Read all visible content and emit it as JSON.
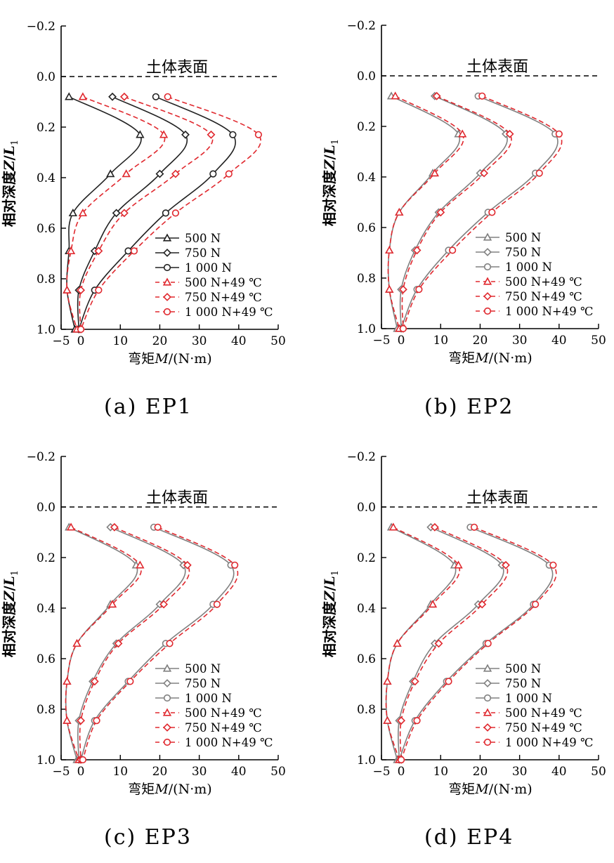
{
  "figure": {
    "xlabel_prefix": "弯矩",
    "xlabel_var": "M",
    "xlabel_unit": "/(N·m)",
    "ylabel_prefix": "相对深度",
    "ylabel_var_z": "Z",
    "ylabel_slash": "/",
    "ylabel_var_l": "L",
    "ylabel_sub": "1",
    "surface_label": "土体表面",
    "legend": [
      {
        "label": "500 N",
        "marker": "triangle",
        "style": "solid"
      },
      {
        "label": "750 N",
        "marker": "diamond",
        "style": "solid"
      },
      {
        "label": "1 000 N",
        "marker": "circle",
        "style": "solid"
      },
      {
        "label": "500 N+49 ℃",
        "marker": "triangle",
        "style": "dashed"
      },
      {
        "label": "750 N+49 ℃",
        "marker": "diamond",
        "style": "dashed"
      },
      {
        "label": "1 000 N+49 ℃",
        "marker": "circle",
        "style": "dashed"
      }
    ],
    "colors": {
      "solid_ep1": "#222222",
      "solid_other": "#808080",
      "dashed": "#e0282e",
      "axis": "#000000"
    }
  },
  "captions": [
    "(a) EP1",
    "(b) EP2",
    "(c) EP3",
    "(d) EP4"
  ],
  "chart_data": [
    {
      "type": "line",
      "title": "(a) EP1",
      "xlabel": "弯矩M/(N·m)",
      "ylabel": "相对深度Z/L1",
      "xlim": [
        -5,
        50
      ],
      "ylim": [
        -0.2,
        1.0
      ],
      "y_inverted": true,
      "xticks": [
        -5,
        0,
        10,
        20,
        30,
        40,
        50
      ],
      "yticks": [
        "-0.2",
        "0.0",
        "0.2",
        "0.4",
        "0.6",
        "0.8",
        "1.0"
      ],
      "annotation": "土体表面",
      "series": [
        {
          "name": "500 N",
          "x": [
            -3,
            15,
            7.5,
            -2,
            -3,
            -3.5,
            -1.5
          ],
          "y": [
            0.08,
            0.23,
            0.385,
            0.54,
            0.69,
            0.845,
            1.0
          ]
        },
        {
          "name": "750 N",
          "x": [
            8,
            26.5,
            20,
            9,
            3.5,
            -0.5,
            -0.5
          ],
          "y": [
            0.08,
            0.23,
            0.385,
            0.54,
            0.69,
            0.845,
            1.0
          ]
        },
        {
          "name": "1 000 N",
          "x": [
            19,
            38.5,
            33.5,
            21.5,
            12,
            3.5,
            -0.5
          ],
          "y": [
            0.08,
            0.23,
            0.385,
            0.54,
            0.69,
            0.845,
            1.0
          ]
        },
        {
          "name": "500 N+49 ℃",
          "x": [
            0.5,
            21,
            11.5,
            0.5,
            -2.5,
            -3.5,
            -1
          ],
          "y": [
            0.08,
            0.23,
            0.385,
            0.54,
            0.69,
            0.845,
            1.0
          ]
        },
        {
          "name": "750 N+49 ℃",
          "x": [
            11,
            33,
            24,
            11,
            4.5,
            0,
            0
          ],
          "y": [
            0.08,
            0.23,
            0.385,
            0.54,
            0.69,
            0.845,
            1.0
          ]
        },
        {
          "name": "1 000 N+49 ℃",
          "x": [
            22,
            45,
            37.5,
            24,
            13.5,
            4.5,
            0
          ],
          "y": [
            0.08,
            0.23,
            0.385,
            0.54,
            0.69,
            0.845,
            1.0
          ]
        }
      ]
    },
    {
      "type": "line",
      "title": "(b) EP2",
      "xlabel": "弯矩M/(N·m)",
      "ylabel": "相对深度Z/L1",
      "xlim": [
        -5,
        50
      ],
      "ylim": [
        -0.2,
        1.0
      ],
      "y_inverted": true,
      "xticks": [
        -5,
        0,
        10,
        20,
        30,
        40,
        50
      ],
      "yticks": [
        "-0.2",
        "0.0",
        "0.2",
        "0.4",
        "0.6",
        "0.8",
        "1.0"
      ],
      "annotation": "土体表面",
      "series": [
        {
          "name": "500 N",
          "x": [
            -2.5,
            14.5,
            8,
            -0.5,
            -3,
            -3,
            -1
          ],
          "y": [
            0.08,
            0.23,
            0.385,
            0.54,
            0.69,
            0.845,
            1.0
          ]
        },
        {
          "name": "750 N",
          "x": [
            8.5,
            26.5,
            20,
            9.5,
            3.5,
            0,
            0
          ],
          "y": [
            0.08,
            0.23,
            0.385,
            0.54,
            0.69,
            0.845,
            1.0
          ]
        },
        {
          "name": "1 000 N",
          "x": [
            19.5,
            39,
            34,
            22,
            12,
            4,
            0
          ],
          "y": [
            0.08,
            0.23,
            0.385,
            0.54,
            0.69,
            0.845,
            1.0
          ]
        },
        {
          "name": "500 N+49 ℃",
          "x": [
            -1.5,
            15.5,
            8.5,
            -0.5,
            -3,
            -3,
            -0.5
          ],
          "y": [
            0.08,
            0.23,
            0.385,
            0.54,
            0.69,
            0.845,
            1.0
          ]
        },
        {
          "name": "750 N+49 ℃",
          "x": [
            9,
            27.5,
            21,
            10,
            4,
            0.5,
            0.5
          ],
          "y": [
            0.08,
            0.23,
            0.385,
            0.54,
            0.69,
            0.845,
            1.0
          ]
        },
        {
          "name": "1 000 N+49 ℃",
          "x": [
            20.5,
            40,
            35,
            23,
            13,
            4.5,
            0.5
          ],
          "y": [
            0.08,
            0.23,
            0.385,
            0.54,
            0.69,
            0.845,
            1.0
          ]
        }
      ]
    },
    {
      "type": "line",
      "title": "(c) EP3",
      "xlabel": "弯矩M/(N·m)",
      "ylabel": "相对深度Z/L1",
      "xlim": [
        -5,
        50
      ],
      "ylim": [
        -0.2,
        1.0
      ],
      "y_inverted": true,
      "xticks": [
        -5,
        0,
        10,
        20,
        30,
        40,
        50
      ],
      "yticks": [
        "-0.2",
        "0.0",
        "0.2",
        "0.4",
        "0.6",
        "0.8",
        "1.0"
      ],
      "annotation": "土体表面",
      "series": [
        {
          "name": "500 N",
          "x": [
            -3,
            14,
            7.5,
            -1,
            -3.5,
            -3.5,
            -1
          ],
          "y": [
            0.08,
            0.23,
            0.385,
            0.54,
            0.69,
            0.845,
            1.0
          ]
        },
        {
          "name": "750 N",
          "x": [
            7.5,
            26,
            20,
            9,
            3,
            -0.5,
            -0.5
          ],
          "y": [
            0.08,
            0.23,
            0.385,
            0.54,
            0.69,
            0.845,
            1.0
          ]
        },
        {
          "name": "1 000 N",
          "x": [
            18.5,
            38,
            33.5,
            21.5,
            12,
            3.5,
            0
          ],
          "y": [
            0.08,
            0.23,
            0.385,
            0.54,
            0.69,
            0.845,
            1.0
          ]
        },
        {
          "name": "500 N+49 ℃",
          "x": [
            -2.5,
            15,
            8,
            -1,
            -3.5,
            -3.5,
            -0.5
          ],
          "y": [
            0.08,
            0.23,
            0.385,
            0.54,
            0.69,
            0.845,
            1.0
          ]
        },
        {
          "name": "750 N+49 ℃",
          "x": [
            8.5,
            27,
            21,
            9.5,
            3.5,
            0,
            0
          ],
          "y": [
            0.08,
            0.23,
            0.385,
            0.54,
            0.69,
            0.845,
            1.0
          ]
        },
        {
          "name": "1 000 N+49 ℃",
          "x": [
            19.5,
            39,
            34.5,
            22.5,
            12.5,
            4,
            0.5
          ],
          "y": [
            0.08,
            0.23,
            0.385,
            0.54,
            0.69,
            0.845,
            1.0
          ]
        }
      ]
    },
    {
      "type": "line",
      "title": "(d) EP4",
      "xlabel": "弯矩M/(N·m)",
      "ylabel": "相对深度Z/L1",
      "xlim": [
        -5,
        50
      ],
      "ylim": [
        -0.2,
        1.0
      ],
      "y_inverted": true,
      "xticks": [
        -5,
        0,
        10,
        20,
        30,
        40,
        50
      ],
      "yticks": [
        "-0.2",
        "0.0",
        "0.2",
        "0.4",
        "0.6",
        "0.8",
        "1.0"
      ],
      "annotation": "土体表面",
      "series": [
        {
          "name": "500 N",
          "x": [
            -2.5,
            13.5,
            7.5,
            -1,
            -3.5,
            -3.5,
            -1
          ],
          "y": [
            0.08,
            0.23,
            0.385,
            0.54,
            0.69,
            0.845,
            1.0
          ]
        },
        {
          "name": "750 N",
          "x": [
            7.5,
            25.5,
            19.5,
            8.5,
            3,
            -0.5,
            -0.5
          ],
          "y": [
            0.08,
            0.23,
            0.385,
            0.54,
            0.69,
            0.845,
            1.0
          ]
        },
        {
          "name": "1 000 N",
          "x": [
            17.5,
            37.5,
            33.5,
            21.5,
            11.5,
            3.5,
            -0.5
          ],
          "y": [
            0.08,
            0.23,
            0.385,
            0.54,
            0.69,
            0.845,
            1.0
          ]
        },
        {
          "name": "500 N+49 ℃",
          "x": [
            -2,
            14.5,
            8,
            -1,
            -3.5,
            -3.5,
            -0.5
          ],
          "y": [
            0.08,
            0.23,
            0.385,
            0.54,
            0.69,
            0.845,
            1.0
          ]
        },
        {
          "name": "750 N+49 ℃",
          "x": [
            8.5,
            26.5,
            20.5,
            9.5,
            3.5,
            0,
            0
          ],
          "y": [
            0.08,
            0.23,
            0.385,
            0.54,
            0.69,
            0.845,
            1.0
          ]
        },
        {
          "name": "1 000 N+49 ℃",
          "x": [
            18.5,
            38.5,
            34,
            22,
            12,
            4,
            0
          ],
          "y": [
            0.08,
            0.23,
            0.385,
            0.54,
            0.69,
            0.845,
            1.0
          ]
        }
      ]
    }
  ]
}
